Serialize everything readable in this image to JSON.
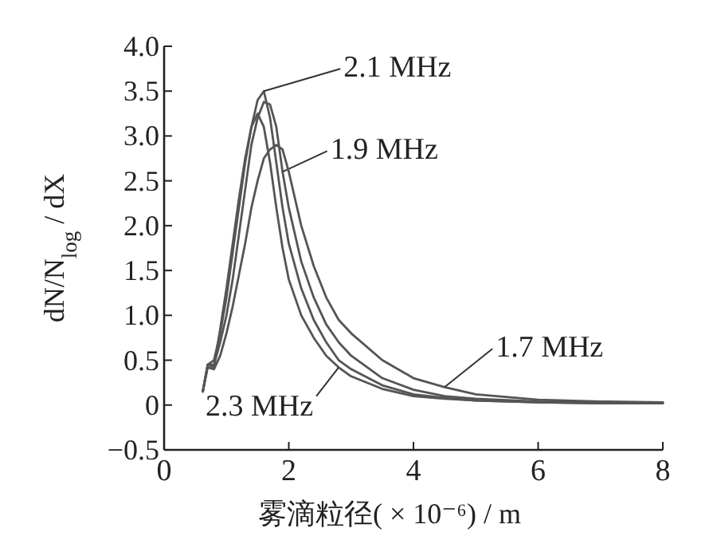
{
  "chart_data": {
    "type": "line",
    "xlabel": "雾滴粒径( × 10⁻⁶) / m",
    "ylabel": "dN/N$_{log}$ / dX",
    "x": [
      0.62,
      0.7,
      0.8,
      0.9,
      1.0,
      1.1,
      1.2,
      1.3,
      1.4,
      1.5,
      1.6,
      1.7,
      1.8,
      1.9,
      2.0,
      2.2,
      2.4,
      2.6,
      2.8,
      3.0,
      3.5,
      4.0,
      4.5,
      5,
      6,
      7,
      8
    ],
    "series": [
      {
        "name": "2.1 MHz",
        "color": "#555555",
        "values": [
          0.15,
          0.45,
          0.5,
          0.8,
          1.2,
          1.7,
          2.2,
          2.7,
          3.1,
          3.4,
          3.5,
          3.2,
          2.7,
          2.2,
          1.8,
          1.3,
          0.95,
          0.7,
          0.5,
          0.4,
          0.22,
          0.12,
          0.08,
          0.05,
          0.03,
          0.02,
          0.02
        ]
      },
      {
        "name": "1.9 MHz",
        "color": "#555555",
        "values": [
          0.15,
          0.45,
          0.45,
          0.7,
          1.0,
          1.4,
          1.9,
          2.4,
          2.9,
          3.2,
          3.38,
          3.35,
          3.1,
          2.6,
          2.2,
          1.6,
          1.2,
          0.9,
          0.7,
          0.55,
          0.3,
          0.17,
          0.1,
          0.07,
          0.04,
          0.03,
          0.02
        ]
      },
      {
        "name": "1.7 MHz",
        "color": "#555555",
        "values": [
          0.15,
          0.42,
          0.4,
          0.55,
          0.8,
          1.1,
          1.45,
          1.8,
          2.2,
          2.5,
          2.75,
          2.85,
          2.9,
          2.85,
          2.6,
          2.0,
          1.55,
          1.2,
          0.95,
          0.8,
          0.5,
          0.3,
          0.2,
          0.12,
          0.06,
          0.04,
          0.03
        ]
      },
      {
        "name": "2.3 MHz",
        "color": "#555555",
        "values": [
          0.15,
          0.45,
          0.42,
          0.85,
          1.3,
          1.8,
          2.3,
          2.75,
          3.1,
          3.25,
          3.1,
          2.7,
          2.2,
          1.75,
          1.4,
          1.0,
          0.75,
          0.55,
          0.42,
          0.32,
          0.18,
          0.1,
          0.07,
          0.05,
          0.03,
          0.02,
          0.02
        ]
      }
    ],
    "xlim": [
      0,
      8
    ],
    "xticks": [
      0,
      2,
      4,
      6,
      8
    ],
    "ylim": [
      -0.5,
      4.0
    ],
    "yticks": [
      {
        "value": -0.5,
        "label": "−0.5"
      },
      0,
      {
        "value": 0.5,
        "label": "0.5"
      },
      {
        "value": 1.0,
        "label": "1.0"
      },
      {
        "value": 1.5,
        "label": "1.5"
      },
      {
        "value": 2.0,
        "label": "2.0"
      },
      {
        "value": 2.5,
        "label": "2.5"
      },
      {
        "value": 3.0,
        "label": "3.0"
      },
      {
        "value": 3.5,
        "label": "3.5"
      },
      {
        "value": 4.0,
        "label": "4.0"
      }
    ],
    "grid": false,
    "marker": "none",
    "line_style": "solid"
  }
}
